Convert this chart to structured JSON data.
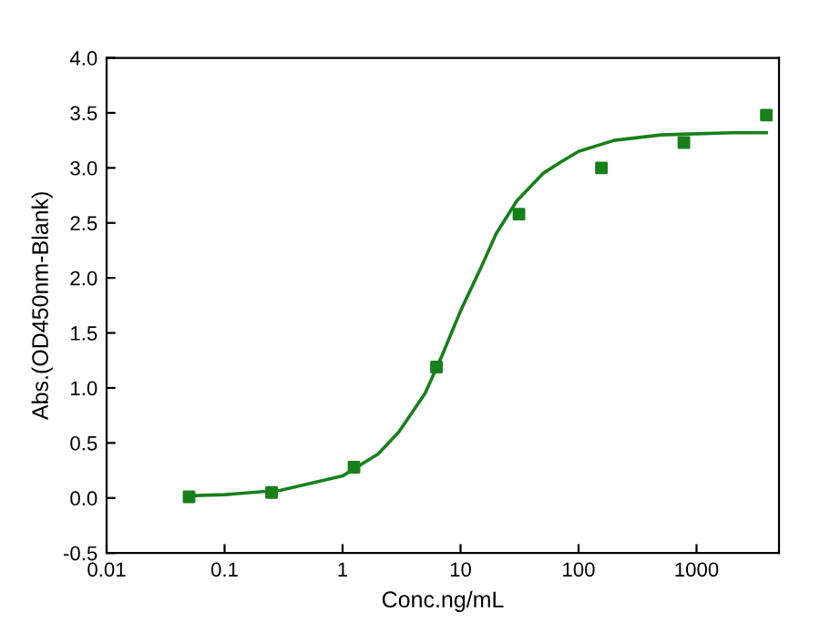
{
  "chart_data": {
    "type": "scatter",
    "xlabel": "Conc.ng/mL",
    "ylabel": "Abs.(OD450nm-Blank)",
    "log": "x",
    "grid": false,
    "marker": "square",
    "xlim": [
      0.01,
      5000
    ],
    "xticks": [
      {
        "value": 0.01,
        "label": "0.01"
      },
      {
        "value": 0.1,
        "label": "0.1"
      },
      {
        "value": 1,
        "label": "1"
      },
      {
        "value": 10,
        "label": "10"
      },
      {
        "value": 100,
        "label": "100"
      },
      {
        "value": 1000,
        "label": "1000"
      }
    ],
    "ylim": [
      -0.5,
      4.0
    ],
    "yticks": [
      {
        "value": -0.5,
        "label": "-0.5"
      },
      {
        "value": 0,
        "label": "0.0"
      },
      {
        "value": 0.5,
        "label": "0.5"
      },
      {
        "value": 1,
        "label": "1.0"
      },
      {
        "value": 1.5,
        "label": "1.5"
      },
      {
        "value": 2,
        "label": "2.0"
      },
      {
        "value": 2.5,
        "label": "2.5"
      },
      {
        "value": 3,
        "label": "3.0"
      },
      {
        "value": 3.5,
        "label": "3.5"
      },
      {
        "value": 4,
        "label": "4.0"
      }
    ],
    "series": [
      {
        "color": "#17801a",
        "x": [
          0.05,
          0.25,
          1.25,
          6.25,
          31.25,
          156.25,
          781.25,
          3906.25
        ],
        "values": [
          0.01,
          0.05,
          0.28,
          1.19,
          2.58,
          3.0,
          3.23,
          3.48
        ]
      },
      {
        "type": "line",
        "color": "#17801a",
        "marker": "none",
        "line_style": "solid",
        "x": [
          0.05,
          0.1,
          0.3,
          1,
          2,
          3,
          5,
          7,
          10,
          15,
          20,
          30,
          50,
          70,
          100,
          200,
          500,
          1000,
          2000,
          3906.25
        ],
        "values": [
          0.02,
          0.03,
          0.07,
          0.2,
          0.4,
          0.6,
          0.95,
          1.3,
          1.7,
          2.1,
          2.4,
          2.7,
          2.95,
          3.05,
          3.15,
          3.25,
          3.3,
          3.31,
          3.32,
          3.32
        ]
      }
    ]
  }
}
